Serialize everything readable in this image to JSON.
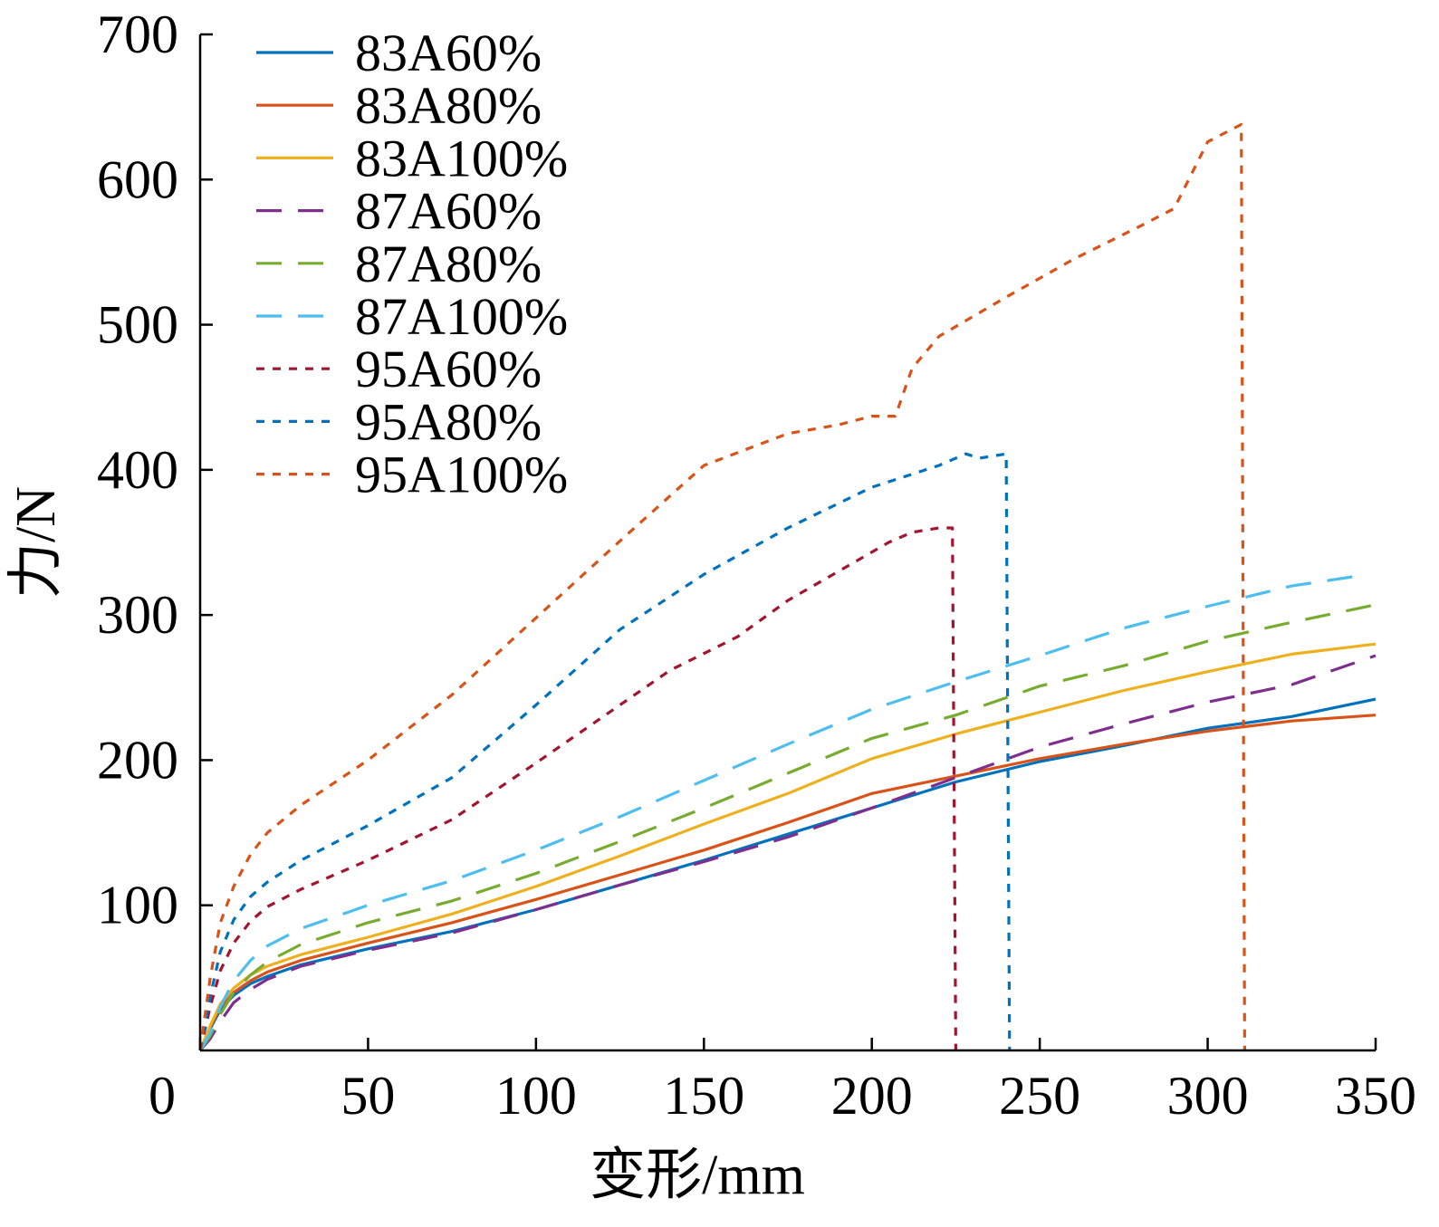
{
  "chart_data": {
    "type": "line",
    "title": "",
    "xlabel": "变形/mm",
    "ylabel": "力/N",
    "xlim": [
      0,
      350
    ],
    "ylim": [
      0,
      700
    ],
    "xticks": [
      0,
      50,
      100,
      150,
      200,
      250,
      300,
      350
    ],
    "yticks": [
      100,
      200,
      300,
      400,
      500,
      600,
      700
    ],
    "ytick_labels": [
      "100",
      "200",
      "300",
      "400",
      "500",
      "600",
      "700"
    ],
    "xtick_labels": [
      "0",
      "50",
      "100",
      "150",
      "200",
      "250",
      "300",
      "350"
    ],
    "grid": false,
    "legend_position": "top-left",
    "series": [
      {
        "name": "83A60%",
        "color": "#0072BD",
        "style": "solid",
        "x": [
          0,
          3,
          6,
          10,
          15,
          20,
          30,
          50,
          75,
          100,
          125,
          150,
          175,
          200,
          225,
          250,
          275,
          300,
          325,
          350
        ],
        "y": [
          0,
          15,
          28,
          38,
          46,
          51,
          59,
          70,
          82,
          97,
          114,
          131,
          149,
          167,
          185,
          199,
          210,
          222,
          230,
          242
        ]
      },
      {
        "name": "83A80%",
        "color": "#D95319",
        "style": "solid",
        "x": [
          0,
          3,
          6,
          10,
          15,
          20,
          30,
          50,
          75,
          100,
          125,
          150,
          175,
          200,
          225,
          250,
          275,
          300,
          325,
          350
        ],
        "y": [
          0,
          16,
          30,
          40,
          48,
          54,
          62,
          74,
          88,
          104,
          121,
          138,
          157,
          177,
          189,
          201,
          211,
          220,
          227,
          231
        ]
      },
      {
        "name": "83A100%",
        "color": "#EDB120",
        "style": "solid",
        "x": [
          0,
          3,
          6,
          10,
          15,
          20,
          30,
          50,
          75,
          100,
          125,
          150,
          175,
          200,
          225,
          250,
          275,
          300,
          325,
          350
        ],
        "y": [
          0,
          17,
          32,
          43,
          52,
          58,
          66,
          78,
          94,
          113,
          134,
          156,
          177,
          201,
          218,
          233,
          248,
          261,
          273,
          280
        ]
      },
      {
        "name": "87A60%",
        "color": "#7E2F8E",
        "style": "dash",
        "x": [
          0,
          3,
          6,
          10,
          15,
          20,
          30,
          50,
          75,
          100,
          125,
          150,
          175,
          200,
          225,
          250,
          275,
          300,
          325,
          350
        ],
        "y": [
          0,
          8,
          20,
          33,
          42,
          49,
          58,
          69,
          81,
          97,
          114,
          130,
          147,
          167,
          188,
          209,
          225,
          240,
          252,
          272
        ]
      },
      {
        "name": "87A80%",
        "color": "#77AC30",
        "style": "dash",
        "x": [
          0,
          3,
          6,
          10,
          15,
          20,
          30,
          50,
          75,
          100,
          125,
          150,
          175,
          200,
          225,
          250,
          275,
          300,
          325,
          350
        ],
        "y": [
          0,
          10,
          25,
          40,
          52,
          61,
          73,
          88,
          103,
          122,
          144,
          167,
          191,
          215,
          231,
          251,
          265,
          282,
          295,
          307
        ]
      },
      {
        "name": "87A100%",
        "color": "#4DBEEE",
        "style": "dash",
        "x": [
          0,
          3,
          6,
          10,
          15,
          20,
          30,
          50,
          75,
          100,
          125,
          150,
          175,
          200,
          225,
          250,
          275,
          300,
          325,
          345
        ],
        "y": [
          0,
          12,
          30,
          48,
          62,
          72,
          84,
          100,
          117,
          138,
          161,
          186,
          211,
          235,
          254,
          272,
          291,
          306,
          320,
          327
        ]
      },
      {
        "name": "95A60%",
        "color": "#A2142F",
        "style": "dot",
        "x": [
          0,
          3,
          6,
          10,
          15,
          20,
          30,
          50,
          75,
          100,
          125,
          140,
          160,
          175,
          190,
          205,
          212,
          220,
          224,
          225
        ],
        "y": [
          0,
          30,
          55,
          74,
          89,
          99,
          111,
          131,
          159,
          198,
          238,
          262,
          285,
          310,
          330,
          350,
          357,
          360,
          360,
          0
        ]
      },
      {
        "name": "95A80%",
        "color": "#0072BD",
        "style": "dot",
        "x": [
          0,
          3,
          6,
          10,
          15,
          20,
          30,
          50,
          75,
          100,
          125,
          150,
          175,
          200,
          220,
          228,
          232,
          240,
          241
        ],
        "y": [
          0,
          37,
          68,
          90,
          106,
          116,
          131,
          155,
          188,
          238,
          290,
          328,
          360,
          388,
          403,
          411,
          408,
          411,
          0
        ]
      },
      {
        "name": "95A100%",
        "color": "#D95319",
        "style": "dot",
        "x": [
          0,
          3,
          6,
          10,
          15,
          20,
          30,
          50,
          75,
          100,
          125,
          150,
          175,
          190,
          200,
          207,
          212,
          220,
          240,
          260,
          280,
          290,
          300,
          310,
          311
        ],
        "y": [
          0,
          50,
          88,
          113,
          135,
          150,
          169,
          200,
          245,
          298,
          351,
          403,
          425,
          431,
          437,
          437,
          470,
          492,
          519,
          545,
          568,
          580,
          626,
          638,
          0
        ]
      }
    ]
  }
}
